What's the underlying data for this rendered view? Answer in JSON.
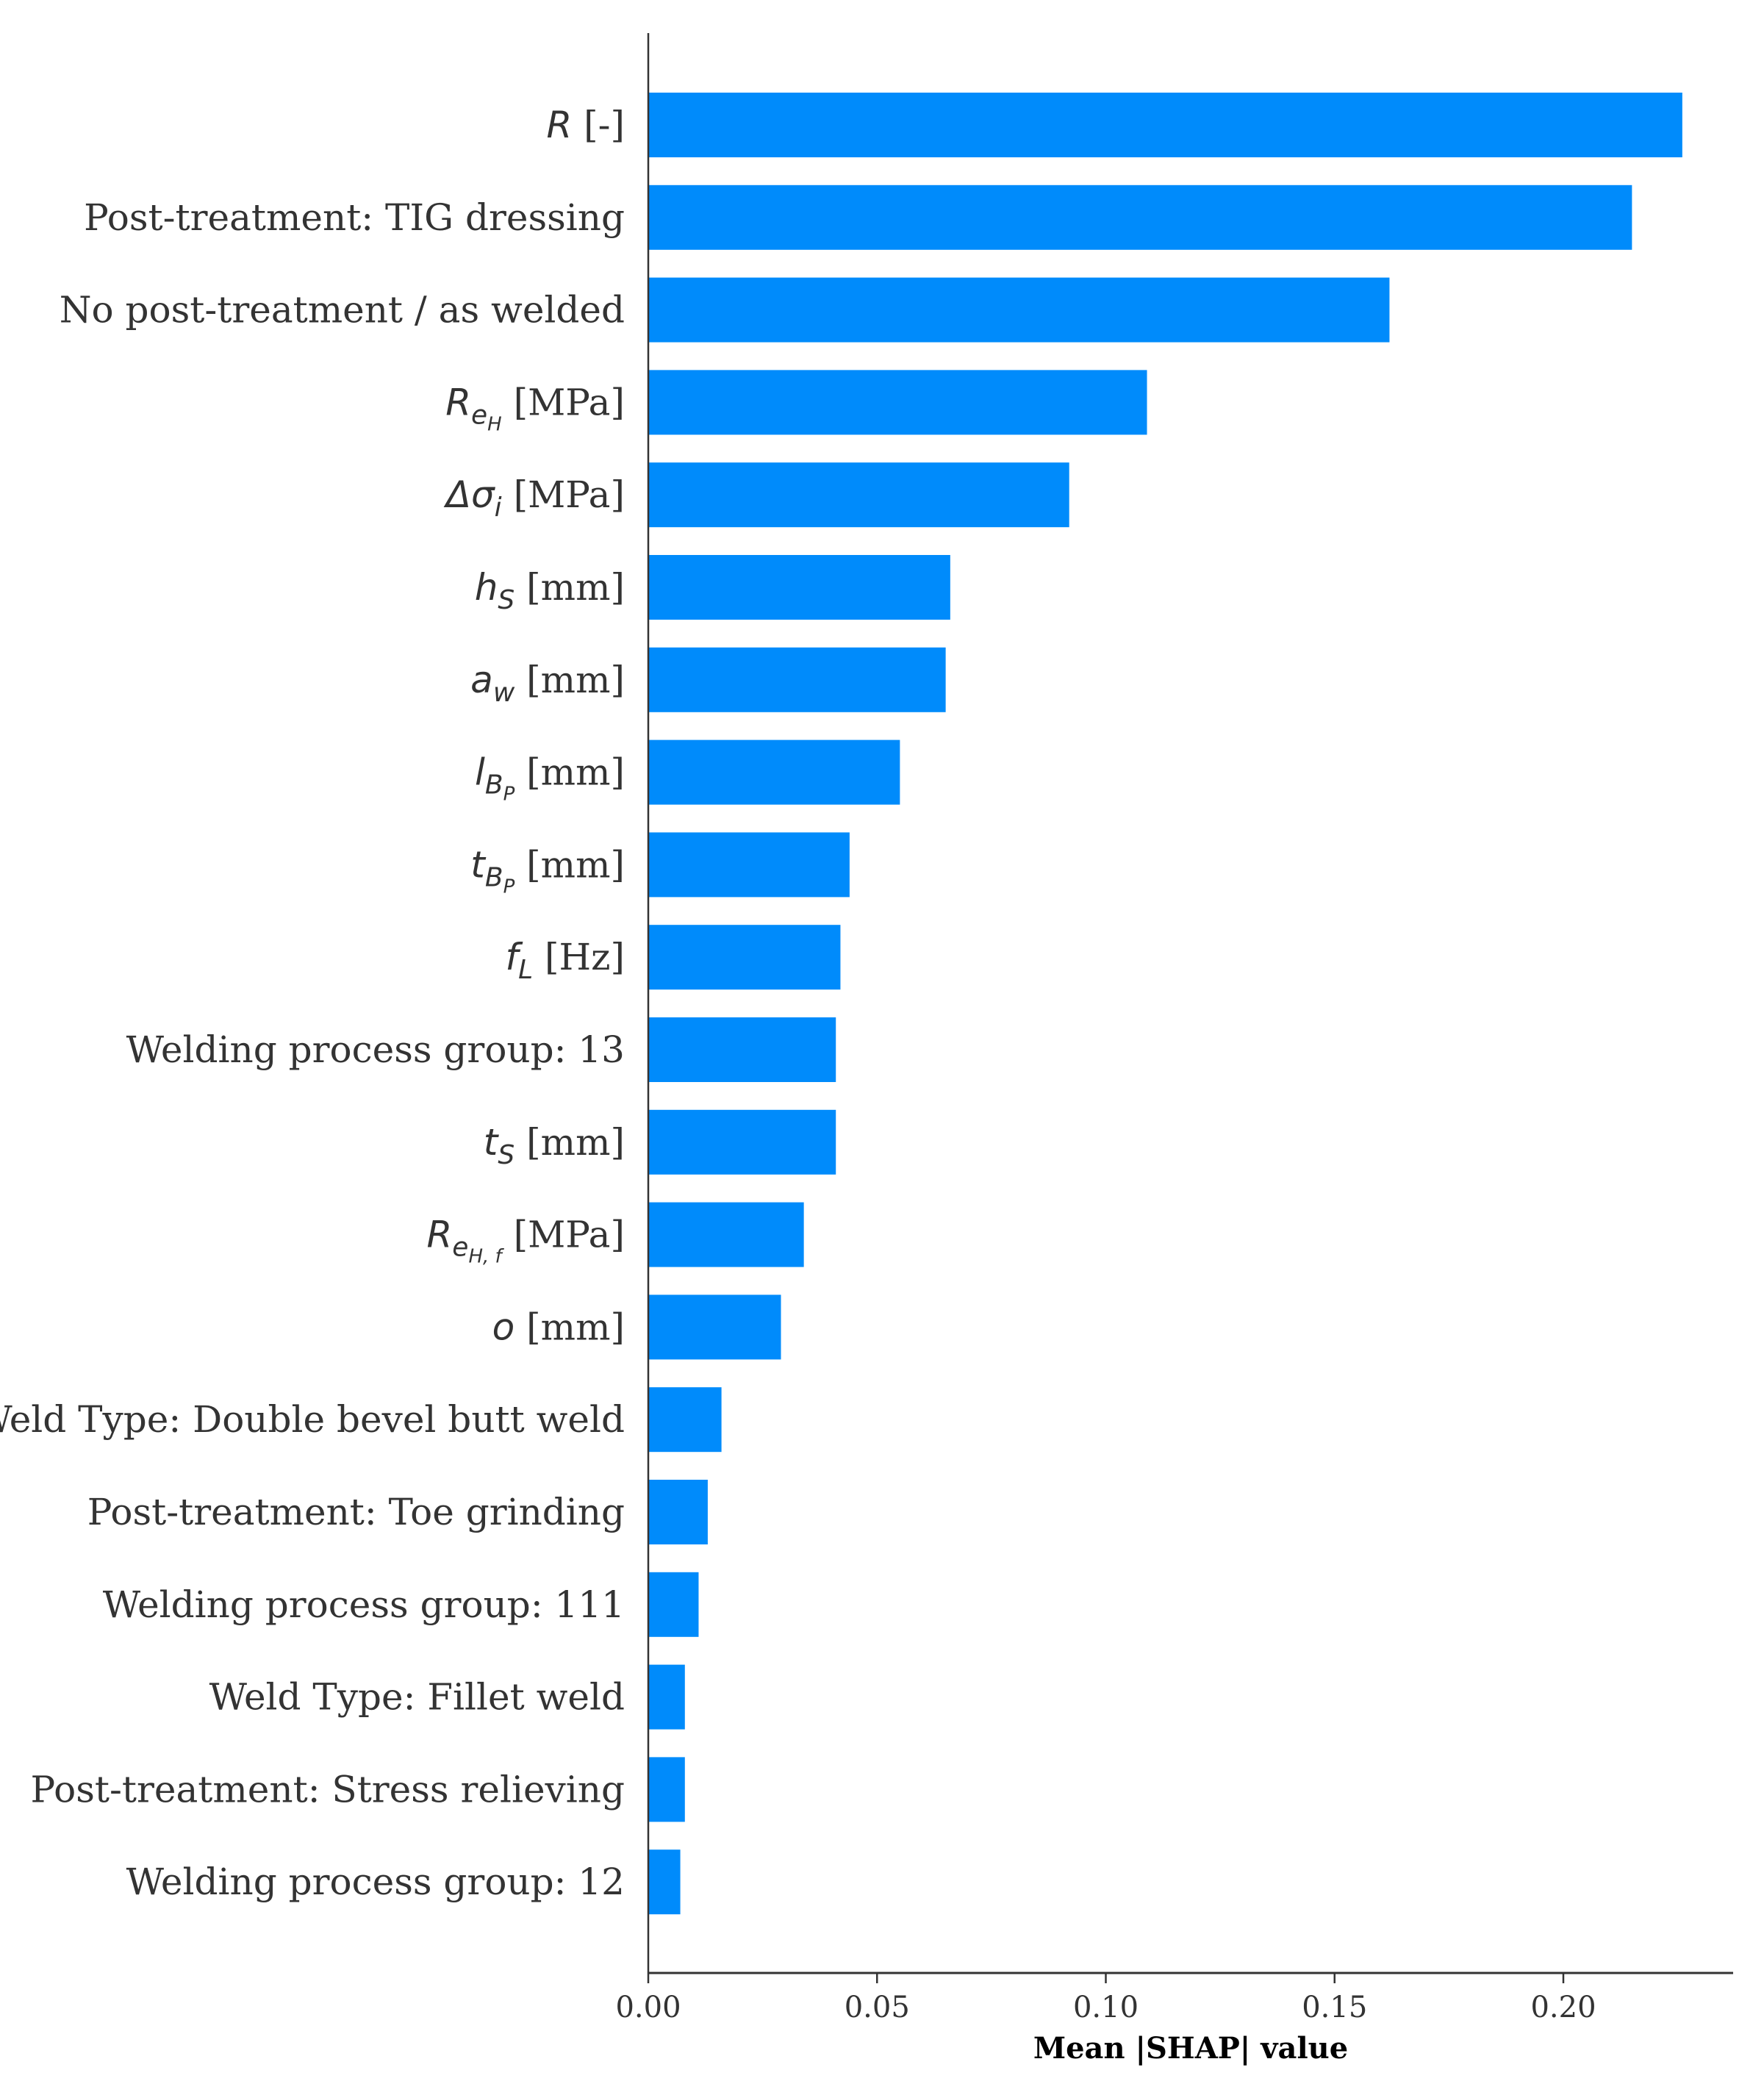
{
  "chart_data": {
    "type": "bar",
    "orientation": "horizontal",
    "title": "",
    "xlabel": "Mean |SHAP| value",
    "ylabel": "",
    "xlim": [
      0,
      0.237
    ],
    "xticks": [
      "0.00",
      "0.05",
      "0.10",
      "0.15",
      "0.20"
    ],
    "grid": false,
    "bar_color": "#008bfb",
    "categories": [
      "R [-]",
      "Post-treatment: TIG dressing",
      "No post-treatment / as welded",
      "R_eH [MPa]",
      "Δσ_i [MPa]",
      "h_S [mm]",
      "a_w [mm]",
      "l_BP [mm]",
      "t_BP [mm]",
      "f_L [Hz]",
      "Welding process group: 13",
      "t_S [mm]",
      "R_eH,f [MPa]",
      "o [mm]",
      "Weld Type: Double bevel butt weld",
      "Post-treatment: Toe grinding",
      "Welding process group: 111",
      "Weld Type: Fillet weld",
      "Post-treatment: Stress relieving",
      "Welding process group: 12"
    ],
    "labels": [
      {
        "main": "R",
        "sub": "",
        "subsub": "",
        "unit": " [-]"
      },
      {
        "main": "",
        "sub": "",
        "subsub": "",
        "unit": "Post-treatment: TIG dressing"
      },
      {
        "main": "",
        "sub": "",
        "subsub": "",
        "unit": "No post-treatment / as welded"
      },
      {
        "main": "R",
        "sub": "e",
        "subsub": "H",
        "unit": " [MPa]"
      },
      {
        "main": "Δσ",
        "sub": "i",
        "subsub": "",
        "unit": " [MPa]"
      },
      {
        "main": "h",
        "sub": "S",
        "subsub": "",
        "unit": " [mm]"
      },
      {
        "main": "a",
        "sub": "w",
        "subsub": "",
        "unit": " [mm]"
      },
      {
        "main": "l",
        "sub": "B",
        "subsub": "P",
        "unit": " [mm]"
      },
      {
        "main": "t",
        "sub": "B",
        "subsub": "P",
        "unit": " [mm]"
      },
      {
        "main": "f",
        "sub": "L",
        "subsub": "",
        "unit": " [Hz]"
      },
      {
        "main": "",
        "sub": "",
        "subsub": "",
        "unit": "Welding process group: 13"
      },
      {
        "main": "t",
        "sub": "S",
        "subsub": "",
        "unit": " [mm]"
      },
      {
        "main": "R",
        "sub": "e",
        "subsub": "H, f",
        "unit": " [MPa]"
      },
      {
        "main": "o",
        "sub": "",
        "subsub": "",
        "unit": " [mm]"
      },
      {
        "main": "",
        "sub": "",
        "subsub": "",
        "unit": "Weld Type: Double bevel butt weld"
      },
      {
        "main": "",
        "sub": "",
        "subsub": "",
        "unit": "Post-treatment: Toe grinding"
      },
      {
        "main": "",
        "sub": "",
        "subsub": "",
        "unit": "Welding process group: 111"
      },
      {
        "main": "",
        "sub": "",
        "subsub": "",
        "unit": "Weld Type: Fillet weld"
      },
      {
        "main": "",
        "sub": "",
        "subsub": "",
        "unit": "Post-treatment: Stress relieving"
      },
      {
        "main": "",
        "sub": "",
        "subsub": "",
        "unit": "Welding process group: 12"
      }
    ],
    "values": [
      0.226,
      0.215,
      0.162,
      0.109,
      0.092,
      0.066,
      0.065,
      0.055,
      0.044,
      0.042,
      0.041,
      0.041,
      0.034,
      0.029,
      0.016,
      0.013,
      0.011,
      0.008,
      0.008,
      0.007
    ]
  }
}
